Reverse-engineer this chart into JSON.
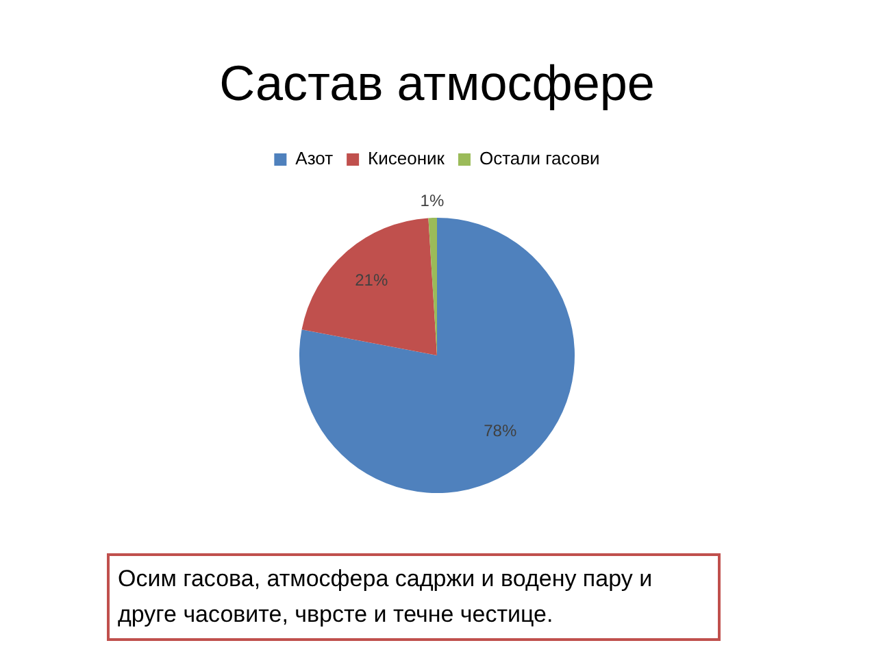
{
  "chart_data": {
    "type": "pie",
    "title": "Састав атмосфере",
    "categories": [
      "Азот",
      "Кисеоник",
      "Остали гасови"
    ],
    "values": [
      78,
      21,
      1
    ],
    "value_labels": [
      "78%",
      "21%",
      "1%"
    ],
    "colors": [
      "#4f81bd",
      "#c0504d",
      "#9bbb59"
    ],
    "legend": "top",
    "annotations": [
      "Осим гасова, атмосфера садржи и водену пару и друге часовите, чврсте и течне честице."
    ]
  }
}
